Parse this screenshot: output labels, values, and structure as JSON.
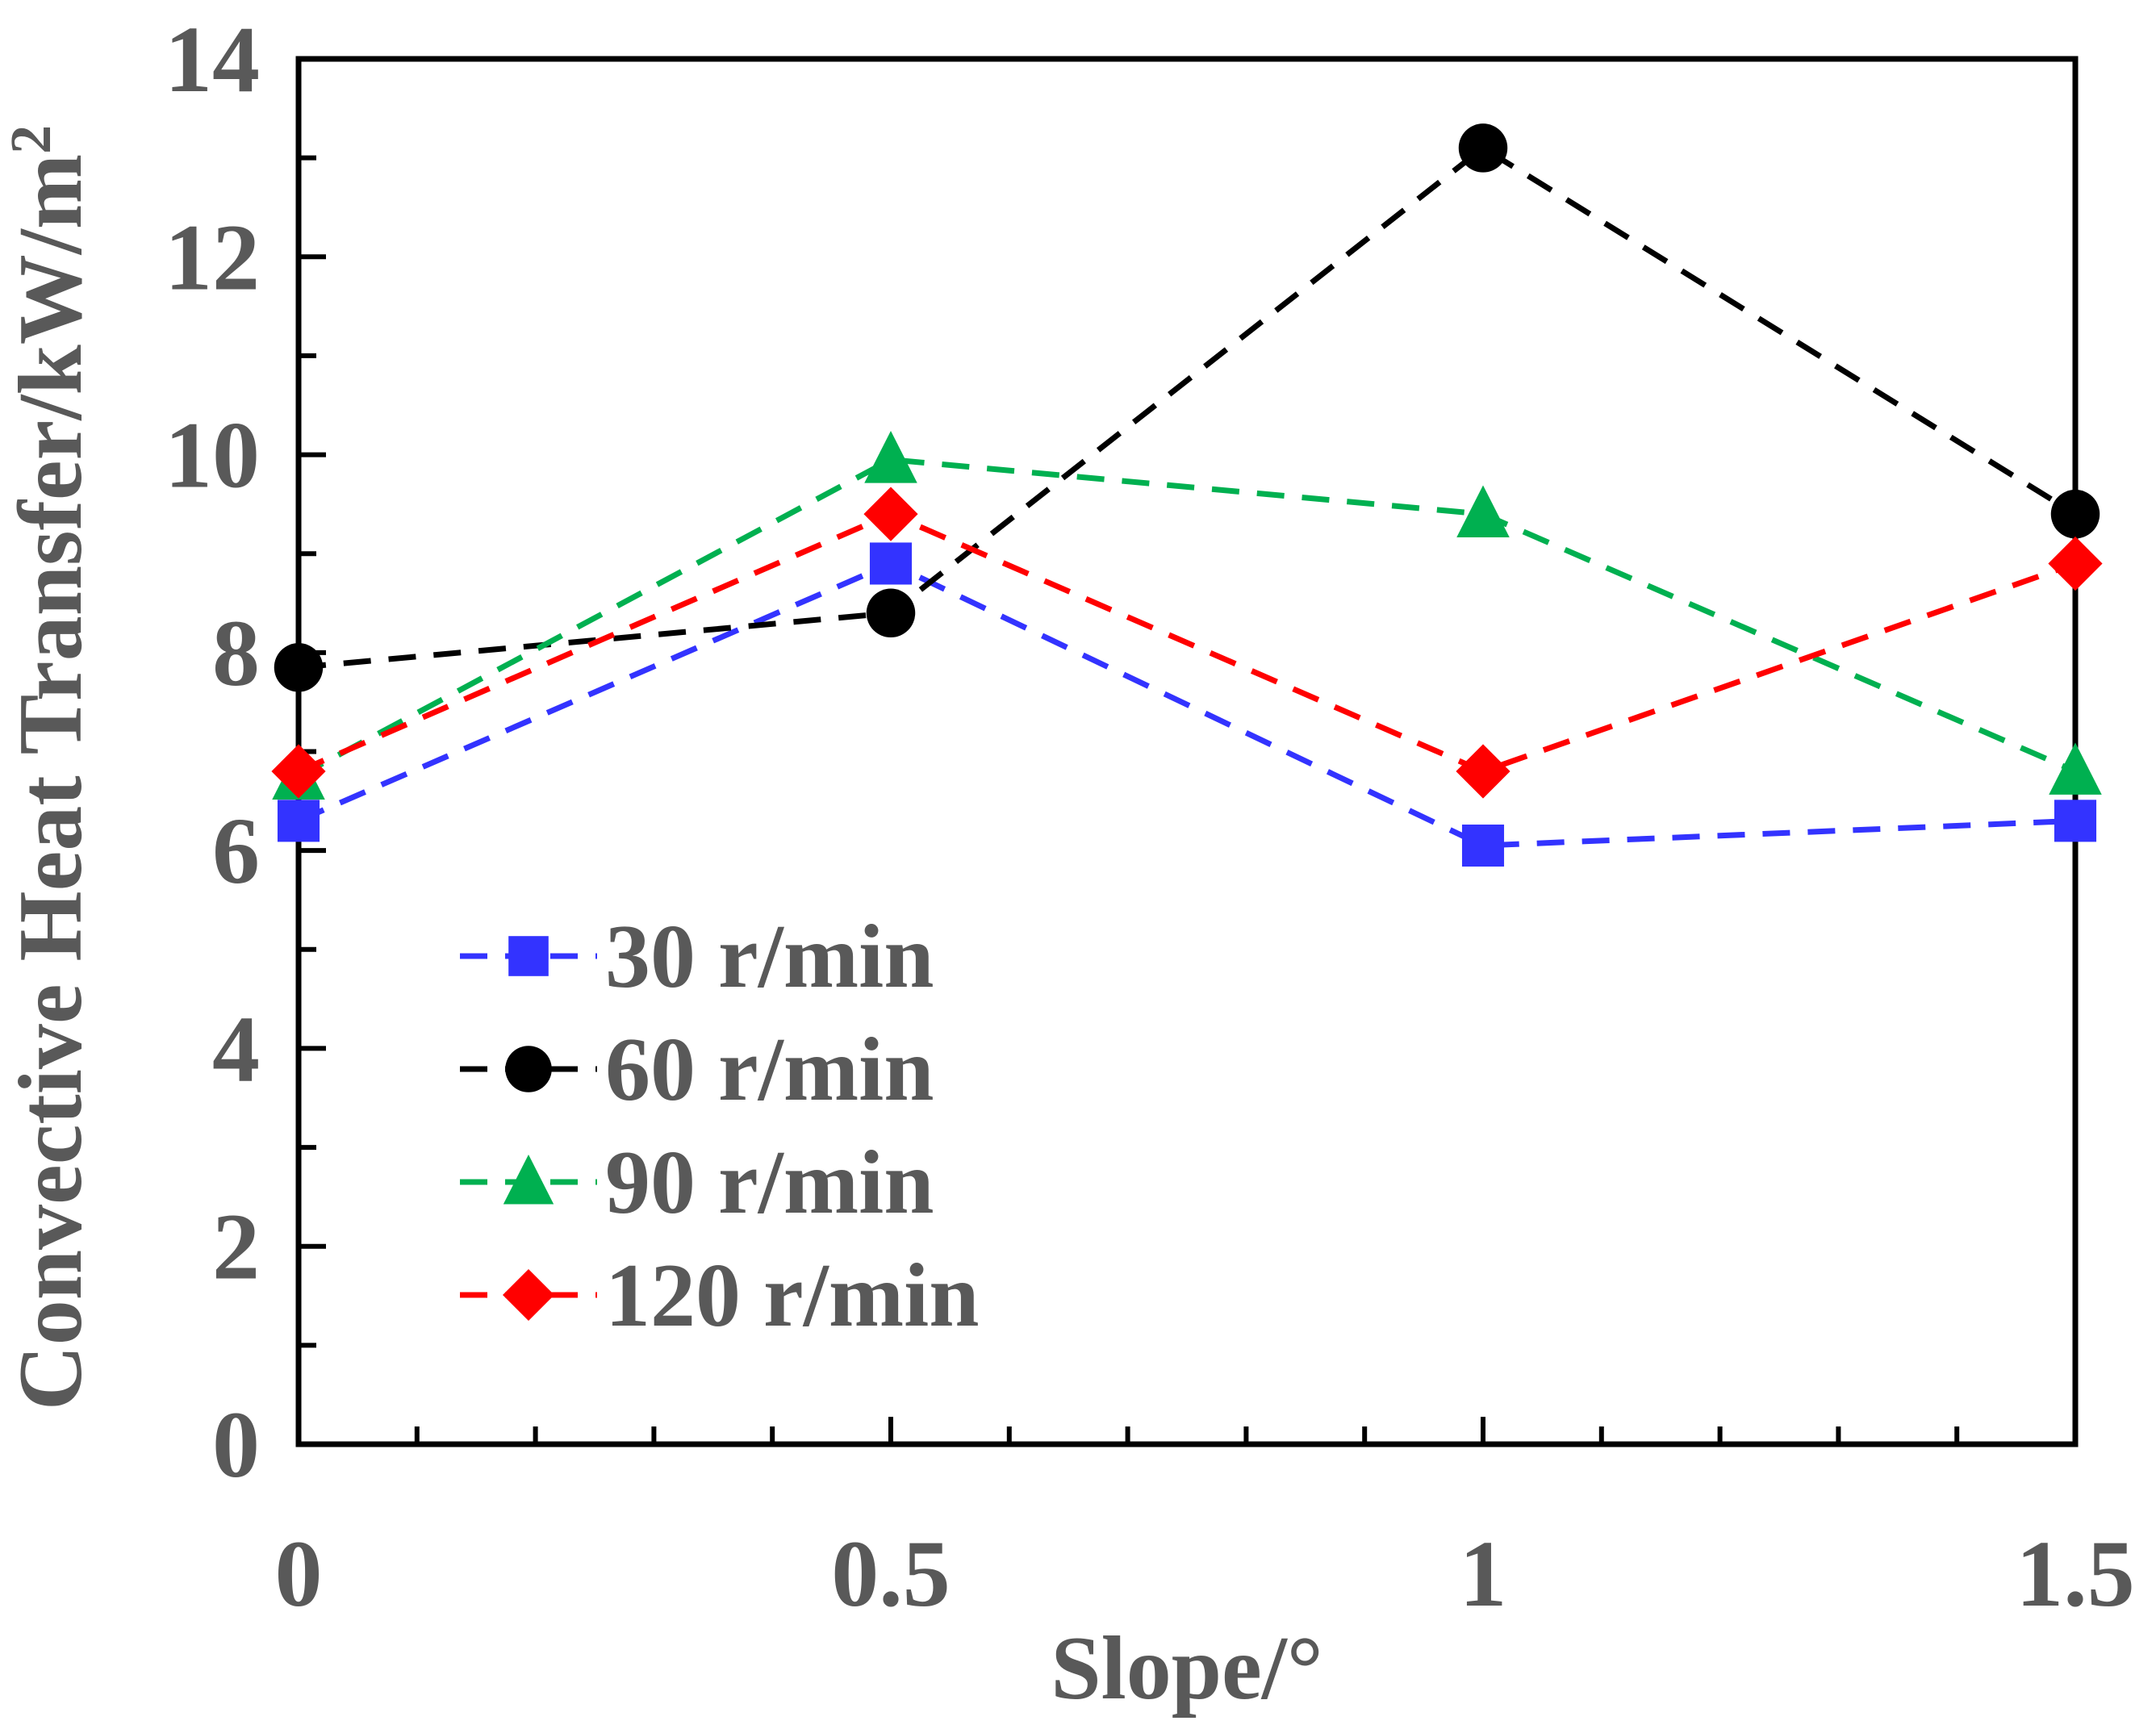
{
  "chart_data": {
    "type": "line",
    "title": "",
    "xlabel": "Slope/°",
    "ylabel": "Convective Heat Transfer/kW/m",
    "ylabel_superscript": "2",
    "x": [
      0,
      0.5,
      1,
      1.5
    ],
    "x_tick_labels": [
      "0",
      "0.5",
      "1",
      "1.5"
    ],
    "y_tick_labels": [
      "0",
      "2",
      "4",
      "6",
      "8",
      "10",
      "12",
      "14"
    ],
    "xlim": [
      0,
      1.5
    ],
    "ylim": [
      0,
      14
    ],
    "grid": false,
    "legend_position": "middle-left",
    "series": [
      {
        "name": "30 r/min",
        "marker": "square",
        "color": "#3333ff",
        "values": [
          6.3,
          8.9,
          6.05,
          6.3
        ]
      },
      {
        "name": "60 r/min",
        "marker": "circle",
        "color": "#000000",
        "values": [
          7.85,
          8.4,
          13.1,
          9.4
        ]
      },
      {
        "name": "90 r/min",
        "marker": "triangle",
        "color": "#00b050",
        "values": [
          6.75,
          9.95,
          9.4,
          6.8
        ]
      },
      {
        "name": "120 r/min",
        "marker": "diamond",
        "color": "#ff0000",
        "values": [
          6.8,
          9.4,
          6.8,
          8.9
        ]
      }
    ]
  }
}
